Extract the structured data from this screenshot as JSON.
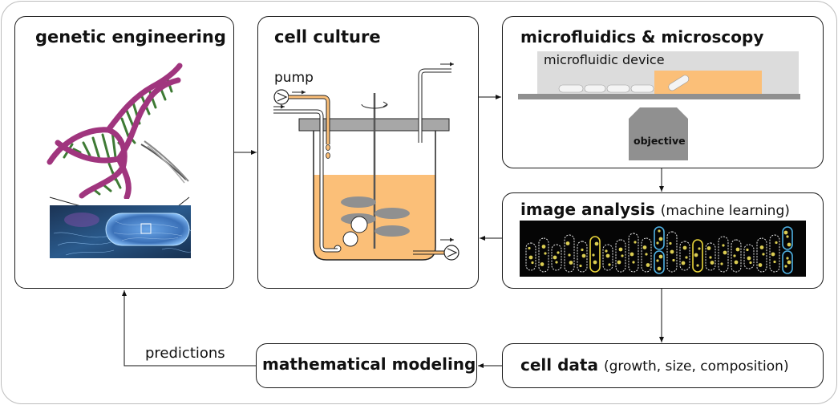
{
  "boxes": {
    "genetic": {
      "title": "genetic engineering"
    },
    "culture": {
      "title": "cell culture",
      "pump_label": "pump"
    },
    "micro": {
      "title": "microfluidics & microscopy",
      "device_label": "microfluidic device",
      "objective_label": "objective"
    },
    "analysis": {
      "title": "image analysis",
      "subtitle": "(machine learning)"
    },
    "celldata": {
      "title": "cell data",
      "subtitle": "(growth, size, composition)"
    },
    "modeling": {
      "title": "mathematical modeling"
    }
  },
  "arrows": {
    "predictions_label": "predictions"
  },
  "colors": {
    "medium": "#fbbf78",
    "dna_backbone": "#a0357e",
    "dna_base": "#3e7a34",
    "bacterium_bg": "#1f3f64",
    "bacterium": "#3d78c2",
    "dark_grey": "#909090",
    "device_grey": "#dcdcdc",
    "yellow_cell": "#e9d53a",
    "blue_cell": "#4fb1e3"
  }
}
